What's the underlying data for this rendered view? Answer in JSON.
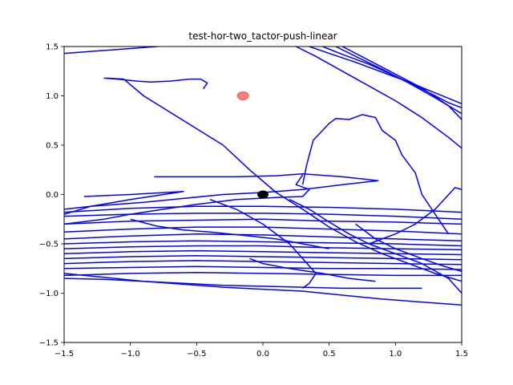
{
  "chart_data": {
    "type": "line",
    "title": "test-hor-two_tactor-push-linear",
    "xlabel": "",
    "ylabel": "",
    "xlim": [
      -1.5,
      1.5
    ],
    "ylim": [
      -1.5,
      1.5
    ],
    "xticks": [
      -1.5,
      -1.0,
      -0.5,
      0.0,
      0.5,
      1.0,
      1.5
    ],
    "yticks": [
      -1.5,
      -1.0,
      -0.5,
      0.0,
      0.5,
      1.0,
      1.5
    ],
    "xtick_labels": [
      "−1.5",
      "−1.0",
      "−0.5",
      "0.0",
      "0.5",
      "1.0",
      "1.5"
    ],
    "ytick_labels": [
      "−1.5",
      "−1.0",
      "−0.5",
      "0.0",
      "0.5",
      "1.0",
      "1.5"
    ],
    "grid": false,
    "colors": {
      "trajectory": "#0000ff",
      "target": "#f08080",
      "origin": "#000000"
    },
    "markers": [
      {
        "x": -0.15,
        "y": 1.0,
        "color": "#f08080"
      },
      {
        "x": 0.0,
        "y": 0.0,
        "color": "#000000"
      }
    ],
    "series": [
      {
        "x": [
          -1.2,
          -1.1,
          -0.95,
          -0.85,
          -0.7,
          -0.55,
          -0.47,
          -0.42,
          -0.45
        ],
        "y": [
          1.18,
          1.17,
          1.15,
          1.14,
          1.15,
          1.17,
          1.17,
          1.13,
          1.07
        ]
      },
      {
        "x": [
          -1.18,
          -1.05,
          -0.9,
          -0.6,
          -0.3,
          -0.1,
          0.1,
          0.3,
          0.5,
          0.7,
          0.9,
          1.1,
          1.3,
          1.5
        ],
        "y": [
          1.18,
          1.17,
          1.0,
          0.75,
          0.5,
          0.25,
          0.02,
          -0.15,
          -0.33,
          -0.48,
          -0.6,
          -0.7,
          -0.8,
          -0.88
        ]
      },
      {
        "x": [
          -1.5,
          -1.3,
          -1.1,
          -0.9,
          -0.7,
          -0.5,
          -0.3,
          -0.1,
          0.1,
          0.3,
          0.5
        ],
        "y": [
          1.43,
          1.45,
          1.47,
          1.49,
          1.51,
          1.53,
          1.55,
          1.57,
          1.59,
          1.61,
          1.63
        ]
      },
      {
        "x": [
          0.25,
          0.4,
          0.6,
          0.8,
          1.0,
          1.2,
          1.4,
          1.5
        ],
        "y": [
          1.5,
          1.4,
          1.25,
          1.1,
          0.95,
          0.78,
          0.58,
          0.47
        ]
      },
      {
        "x": [
          0.35,
          0.5,
          0.7,
          0.9,
          1.1,
          1.3,
          1.5
        ],
        "y": [
          1.5,
          1.43,
          1.34,
          1.24,
          1.14,
          1.03,
          0.92
        ]
      },
      {
        "x": [
          0.45,
          0.6,
          0.8,
          1.0,
          1.2,
          1.4,
          1.5
        ],
        "y": [
          1.5,
          1.42,
          1.32,
          1.2,
          1.07,
          0.93,
          0.88
        ]
      },
      {
        "x": [
          0.55,
          0.7,
          0.9,
          1.1,
          1.3,
          1.5
        ],
        "y": [
          1.5,
          1.4,
          1.27,
          1.13,
          0.98,
          0.82
        ]
      },
      {
        "x": [
          0.6,
          0.8,
          1.0,
          1.2,
          1.4,
          1.5
        ],
        "y": [
          1.5,
          1.36,
          1.22,
          1.08,
          0.9,
          0.76
        ]
      },
      {
        "x": [
          0.3,
          0.33,
          0.38,
          0.5,
          0.55,
          0.65,
          0.75,
          0.85,
          0.9,
          1.0,
          1.05,
          1.15,
          1.2,
          1.3,
          1.4
        ],
        "y": [
          0.1,
          0.3,
          0.55,
          0.72,
          0.77,
          0.76,
          0.81,
          0.78,
          0.65,
          0.55,
          0.4,
          0.22,
          0.0,
          -0.2,
          -0.4
        ]
      },
      {
        "x": [
          0.3,
          0.25,
          0.35,
          0.3,
          0.1,
          -0.2,
          -0.5,
          -0.75,
          -1.0,
          -1.2,
          -1.5
        ],
        "y": [
          0.2,
          0.1,
          0.05,
          -0.02,
          -0.03,
          -0.05,
          -0.1,
          -0.15,
          -0.2,
          -0.25,
          -0.3
        ]
      },
      {
        "x": [
          -0.82,
          -0.5,
          -0.2,
          0.1,
          0.3,
          0.6,
          0.87,
          0.6,
          0.3,
          0.0,
          -0.3,
          -0.6,
          -0.9,
          -1.3,
          -1.5
        ],
        "y": [
          0.18,
          0.18,
          0.18,
          0.19,
          0.21,
          0.18,
          0.14,
          0.1,
          0.05,
          0.02,
          0.0,
          -0.04,
          -0.08,
          -0.12,
          -0.15
        ]
      },
      {
        "x": [
          -1.35,
          -1.0,
          -0.6,
          -1.0,
          -1.3,
          -1.5
        ],
        "y": [
          -0.02,
          0.0,
          0.03,
          -0.05,
          -0.12,
          -0.2
        ]
      },
      {
        "x": [
          -1.5,
          -1.0,
          -0.5,
          0.0,
          0.5,
          1.0,
          1.5
        ],
        "y": [
          -0.18,
          -0.14,
          -0.12,
          -0.12,
          -0.13,
          -0.15,
          -0.18
        ]
      },
      {
        "x": [
          -1.5,
          -1.0,
          -0.5,
          0.0,
          0.5,
          1.0,
          1.5
        ],
        "y": [
          -0.22,
          -0.2,
          -0.19,
          -0.19,
          -0.2,
          -0.22,
          -0.25
        ]
      },
      {
        "x": [
          -1.5,
          -1.0,
          -0.5,
          0.0,
          0.5,
          1.0,
          1.5
        ],
        "y": [
          -0.3,
          -0.27,
          -0.26,
          -0.25,
          -0.27,
          -0.28,
          -0.3
        ]
      },
      {
        "x": [
          -1.5,
          -1.0,
          -0.5,
          0.0,
          0.5,
          1.0,
          1.5
        ],
        "y": [
          -0.38,
          -0.35,
          -0.33,
          -0.33,
          -0.35,
          -0.37,
          -0.4
        ]
      },
      {
        "x": [
          -1.5,
          -1.0,
          -0.5,
          0.0,
          0.5,
          1.0,
          1.5
        ],
        "y": [
          -0.45,
          -0.42,
          -0.4,
          -0.41,
          -0.43,
          -0.45,
          -0.47
        ]
      },
      {
        "x": [
          -1.5,
          -1.0,
          -0.5,
          0.0,
          0.5,
          1.0,
          1.5
        ],
        "y": [
          -0.5,
          -0.48,
          -0.47,
          -0.48,
          -0.49,
          -0.5,
          -0.52
        ]
      },
      {
        "x": [
          -1.5,
          -1.0,
          -0.5,
          0.0,
          0.5,
          1.0,
          1.5
        ],
        "y": [
          -0.55,
          -0.53,
          -0.52,
          -0.52,
          -0.54,
          -0.55,
          -0.56
        ]
      },
      {
        "x": [
          -1.5,
          -1.0,
          -0.5,
          0.0,
          0.5,
          1.0,
          1.5
        ],
        "y": [
          -0.6,
          -0.58,
          -0.57,
          -0.58,
          -0.59,
          -0.6,
          -0.61
        ]
      },
      {
        "x": [
          -1.5,
          -1.0,
          -0.5,
          0.0,
          0.5,
          1.0,
          1.5
        ],
        "y": [
          -0.65,
          -0.63,
          -0.62,
          -0.63,
          -0.64,
          -0.65,
          -0.66
        ]
      },
      {
        "x": [
          -1.5,
          -1.0,
          -0.5,
          0.0,
          0.5,
          1.0,
          1.5
        ],
        "y": [
          -0.7,
          -0.68,
          -0.67,
          -0.68,
          -0.69,
          -0.7,
          -0.71
        ]
      },
      {
        "x": [
          -1.5,
          -1.0,
          -0.5,
          0.0,
          0.5,
          1.0,
          1.5
        ],
        "y": [
          -0.75,
          -0.74,
          -0.73,
          -0.74,
          -0.75,
          -0.75,
          -0.76
        ]
      },
      {
        "x": [
          -1.5,
          -1.0,
          -0.5,
          0.0,
          0.5,
          1.0,
          1.5
        ],
        "y": [
          -0.82,
          -0.8,
          -0.79,
          -0.8,
          -0.81,
          -0.82,
          -0.82
        ]
      },
      {
        "x": [
          -1.5,
          -1.2,
          -0.9,
          -0.6,
          -0.3,
          0.0,
          0.3,
          0.6,
          0.9,
          1.2,
          1.5
        ],
        "y": [
          -0.8,
          -0.84,
          -0.88,
          -0.91,
          -0.94,
          -0.96,
          -0.98,
          -1.02,
          -1.06,
          -1.09,
          -1.12
        ]
      },
      {
        "x": [
          -1.5,
          -1.2,
          -0.9,
          -0.6,
          -0.3,
          0.0,
          0.3,
          0.6,
          0.9,
          1.2
        ],
        "y": [
          -0.85,
          -0.86,
          -0.88,
          -0.9,
          -0.92,
          -0.93,
          -0.94,
          -0.95,
          -0.95,
          -0.95
        ]
      },
      {
        "x": [
          0.2,
          0.35,
          0.5,
          0.65,
          0.8,
          1.0,
          1.2,
          1.4,
          1.5
        ],
        "y": [
          -0.05,
          -0.15,
          -0.28,
          -0.4,
          -0.5,
          -0.6,
          -0.7,
          -0.85,
          -1.0
        ]
      },
      {
        "x": [
          -0.4,
          -0.2,
          0.0,
          0.2,
          0.3,
          0.4,
          0.35,
          0.3
        ],
        "y": [
          -0.05,
          -0.15,
          -0.3,
          -0.5,
          -0.65,
          -0.8,
          -0.9,
          -0.95
        ]
      },
      {
        "x": [
          0.8,
          1.0,
          1.15,
          1.3,
          1.45,
          1.5
        ],
        "y": [
          -0.5,
          -0.4,
          -0.3,
          -0.15,
          0.07,
          0.05
        ]
      },
      {
        "x": [
          -1.0,
          -0.8,
          -0.6,
          -0.4,
          -0.1,
          0.1,
          0.3,
          0.5
        ],
        "y": [
          -0.25,
          -0.32,
          -0.36,
          -0.38,
          -0.42,
          -0.45,
          -0.5,
          -0.55
        ]
      },
      {
        "x": [
          -0.1,
          0.0,
          0.2,
          0.45,
          0.65,
          0.85
        ],
        "y": [
          -0.65,
          -0.7,
          -0.75,
          -0.8,
          -0.85,
          -0.88
        ]
      },
      {
        "x": [
          0.7,
          0.85,
          1.0,
          1.2,
          1.35,
          1.5
        ],
        "y": [
          -0.3,
          -0.45,
          -0.55,
          -0.65,
          -0.72,
          -0.78
        ]
      }
    ]
  }
}
